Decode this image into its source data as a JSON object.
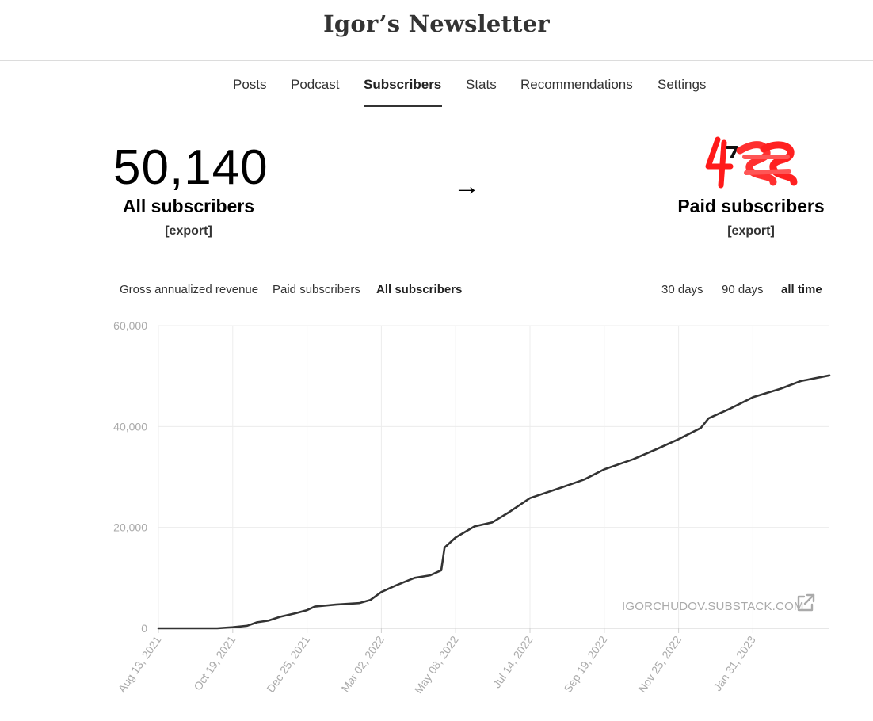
{
  "site": {
    "title": "Igor’s Newsletter"
  },
  "nav": {
    "items": [
      {
        "label": "Posts"
      },
      {
        "label": "Podcast"
      },
      {
        "label": "Subscribers",
        "active": true
      },
      {
        "label": "Stats"
      },
      {
        "label": "Recommendations"
      },
      {
        "label": "Settings"
      }
    ]
  },
  "stats": {
    "all_subscribers": {
      "value": "50,140",
      "label": "All subscribers",
      "export_label": "[export]"
    },
    "flow_arrow": "→",
    "paid_subscribers": {
      "value_redacted": true,
      "label": "Paid subscribers",
      "export_label": "[export]"
    }
  },
  "metric_tabs": [
    {
      "label": "Gross annualized revenue"
    },
    {
      "label": "Paid subscribers"
    },
    {
      "label": "All subscribers",
      "active": true
    }
  ],
  "range_tabs": [
    {
      "label": "30 days"
    },
    {
      "label": "90 days"
    },
    {
      "label": "all time",
      "active": true
    }
  ],
  "watermark": {
    "text": "IGORCHUDOV.SUBSTACK.COM",
    "icon": "external-link-icon"
  },
  "colors": {
    "line": "#333333",
    "grid": "#ececec",
    "axis_text": "#aaaaaa",
    "redaction": "#ff0000"
  },
  "chart_data": {
    "type": "line",
    "series": [
      {
        "x": [
          "2021-08-13",
          "2021-10-05",
          "2021-10-19",
          "2021-11-01",
          "2021-11-10",
          "2021-11-20",
          "2021-12-01",
          "2021-12-15",
          "2021-12-25",
          "2022-01-01",
          "2022-01-20",
          "2022-02-10",
          "2022-02-20",
          "2022-03-02",
          "2022-03-15",
          "2022-04-01",
          "2022-04-15",
          "2022-04-25",
          "2022-04-28",
          "2022-05-08",
          "2022-05-25",
          "2022-06-10",
          "2022-06-25",
          "2022-07-14",
          "2022-08-10",
          "2022-09-01",
          "2022-09-19",
          "2022-10-15",
          "2022-11-05",
          "2022-11-25",
          "2022-12-15",
          "2022-12-22",
          "2023-01-10",
          "2023-01-31",
          "2023-02-25",
          "2023-03-15",
          "2023-04-10"
        ],
        "y": [
          0,
          0,
          200,
          500,
          1200,
          1500,
          2300,
          3000,
          3600,
          4300,
          4700,
          5000,
          5600,
          7200,
          8500,
          10000,
          10500,
          11500,
          16000,
          18000,
          20200,
          21000,
          23000,
          25800,
          27800,
          29500,
          31500,
          33500,
          35500,
          37500,
          39700,
          41600,
          43500,
          45800,
          47500,
          49000,
          50140
        ]
      }
    ],
    "x_ticks": [
      "Aug 13, 2021",
      "Oct 19, 2021",
      "Dec 25, 2021",
      "Mar 02, 2022",
      "May 08, 2022",
      "Jul 14, 2022",
      "Sep 19, 2022",
      "Nov 25, 2022",
      "Jan 31, 2023"
    ],
    "y_ticks": [
      "0",
      "20,000",
      "40,000",
      "60,000"
    ],
    "ylim": [
      0,
      60000
    ],
    "xlim": [
      "2021-08-13",
      "2023-04-10"
    ],
    "grid": true
  }
}
